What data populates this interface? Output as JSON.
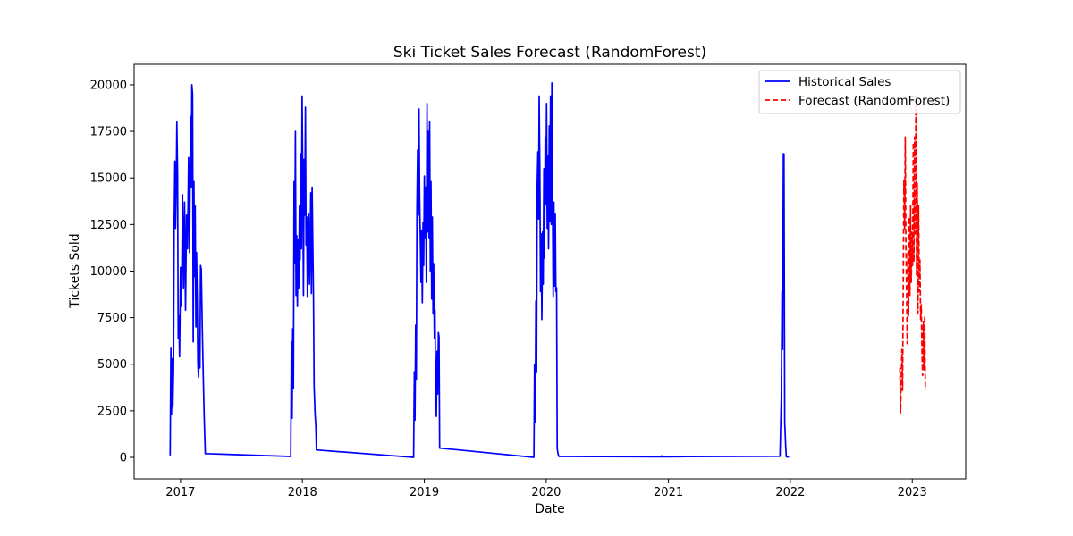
{
  "chart_data": {
    "type": "line",
    "title": "Ski Ticket Sales Forecast (RandomForest)",
    "xlabel": "Date",
    "ylabel": "Tickets Sold",
    "xlim": [
      "2016-08-15",
      "2023-06-10"
    ],
    "ylim": [
      -1150,
      21100
    ],
    "x_ticks": [
      "2017",
      "2018",
      "2019",
      "2020",
      "2021",
      "2022",
      "2023"
    ],
    "y_ticks": [
      0,
      2500,
      5000,
      7500,
      10000,
      12500,
      15000,
      17500,
      20000
    ],
    "y_tick_labels": [
      "0",
      "2500",
      "5000",
      "7500",
      "10000",
      "12500",
      "15000",
      "17500",
      "20000"
    ],
    "grid": false,
    "legend_position": "top-right",
    "series": [
      {
        "name": "Historical Sales",
        "color": "#0000ff",
        "style": "solid",
        "points": [
          [
            "2016-12-01",
            100
          ],
          [
            "2016-12-03",
            5900
          ],
          [
            "2016-12-05",
            2300
          ],
          [
            "2016-12-07",
            5300
          ],
          [
            "2016-12-09",
            2700
          ],
          [
            "2016-12-11",
            4800
          ],
          [
            "2016-12-13",
            12500
          ],
          [
            "2016-12-15",
            15900
          ],
          [
            "2016-12-17",
            12300
          ],
          [
            "2016-12-19",
            14500
          ],
          [
            "2016-12-21",
            18000
          ],
          [
            "2016-12-23",
            15300
          ],
          [
            "2016-12-25",
            6400
          ],
          [
            "2016-12-27",
            7600
          ],
          [
            "2016-12-29",
            5400
          ],
          [
            "2017-01-01",
            10200
          ],
          [
            "2017-01-04",
            8100
          ],
          [
            "2017-01-07",
            14100
          ],
          [
            "2017-01-10",
            9100
          ],
          [
            "2017-01-13",
            13700
          ],
          [
            "2017-01-16",
            7900
          ],
          [
            "2017-01-19",
            13000
          ],
          [
            "2017-01-22",
            11200
          ],
          [
            "2017-01-25",
            16100
          ],
          [
            "2017-01-28",
            11000
          ],
          [
            "2017-01-31",
            18300
          ],
          [
            "2017-02-02",
            14500
          ],
          [
            "2017-02-04",
            20000
          ],
          [
            "2017-02-06",
            19500
          ],
          [
            "2017-02-08",
            6200
          ],
          [
            "2017-02-10",
            14800
          ],
          [
            "2017-02-12",
            9700
          ],
          [
            "2017-02-14",
            13500
          ],
          [
            "2017-02-16",
            7000
          ],
          [
            "2017-02-18",
            11000
          ],
          [
            "2017-02-20",
            8500
          ],
          [
            "2017-02-22",
            5000
          ],
          [
            "2017-02-24",
            4300
          ],
          [
            "2017-02-26",
            6500
          ],
          [
            "2017-02-28",
            4800
          ],
          [
            "2017-03-02",
            10300
          ],
          [
            "2017-03-04",
            10100
          ],
          [
            "2017-03-07",
            7000
          ],
          [
            "2017-03-10",
            4400
          ],
          [
            "2017-03-13",
            2100
          ],
          [
            "2017-03-16",
            200
          ],
          [
            "2017-11-27",
            50
          ],
          [
            "2017-11-29",
            6200
          ],
          [
            "2017-12-01",
            2100
          ],
          [
            "2017-12-03",
            6900
          ],
          [
            "2017-12-05",
            3700
          ],
          [
            "2017-12-07",
            14800
          ],
          [
            "2017-12-09",
            10400
          ],
          [
            "2017-12-11",
            17500
          ],
          [
            "2017-12-13",
            8700
          ],
          [
            "2017-12-15",
            11900
          ],
          [
            "2017-12-17",
            8100
          ],
          [
            "2017-12-19",
            11700
          ],
          [
            "2017-12-21",
            9100
          ],
          [
            "2017-12-23",
            13500
          ],
          [
            "2017-12-25",
            10600
          ],
          [
            "2017-12-27",
            16300
          ],
          [
            "2017-12-29",
            11200
          ],
          [
            "2017-12-31",
            19400
          ],
          [
            "2018-01-02",
            15100
          ],
          [
            "2018-01-04",
            8700
          ],
          [
            "2018-01-06",
            16000
          ],
          [
            "2018-01-08",
            13000
          ],
          [
            "2018-01-10",
            18800
          ],
          [
            "2018-01-12",
            11400
          ],
          [
            "2018-01-14",
            12900
          ],
          [
            "2018-01-16",
            8600
          ],
          [
            "2018-01-18",
            10500
          ],
          [
            "2018-01-20",
            13100
          ],
          [
            "2018-01-22",
            9300
          ],
          [
            "2018-01-24",
            11400
          ],
          [
            "2018-01-26",
            14200
          ],
          [
            "2018-01-28",
            8800
          ],
          [
            "2018-01-30",
            14500
          ],
          [
            "2018-02-01",
            11700
          ],
          [
            "2018-02-03",
            8600
          ],
          [
            "2018-02-05",
            3800
          ],
          [
            "2018-02-08",
            2300
          ],
          [
            "2018-02-10",
            1700
          ],
          [
            "2018-02-12",
            400
          ],
          [
            "2018-11-30",
            0
          ],
          [
            "2018-12-02",
            4600
          ],
          [
            "2018-12-04",
            2000
          ],
          [
            "2018-12-06",
            7100
          ],
          [
            "2018-12-08",
            4200
          ],
          [
            "2018-12-10",
            13400
          ],
          [
            "2018-12-12",
            16500
          ],
          [
            "2018-12-14",
            13000
          ],
          [
            "2018-12-16",
            18700
          ],
          [
            "2018-12-18",
            14000
          ],
          [
            "2018-12-20",
            11700
          ],
          [
            "2018-12-22",
            9400
          ],
          [
            "2018-12-24",
            12200
          ],
          [
            "2018-12-26",
            8300
          ],
          [
            "2018-12-28",
            12600
          ],
          [
            "2018-12-30",
            10300
          ],
          [
            "2019-01-01",
            15100
          ],
          [
            "2019-01-03",
            11800
          ],
          [
            "2019-01-05",
            14500
          ],
          [
            "2019-01-07",
            9400
          ],
          [
            "2019-01-09",
            19000
          ],
          [
            "2019-01-11",
            12100
          ],
          [
            "2019-01-13",
            17500
          ],
          [
            "2019-01-15",
            11800
          ],
          [
            "2019-01-17",
            18000
          ],
          [
            "2019-01-19",
            10000
          ],
          [
            "2019-01-21",
            14800
          ],
          [
            "2019-01-23",
            8500
          ],
          [
            "2019-01-25",
            12900
          ],
          [
            "2019-01-27",
            7700
          ],
          [
            "2019-01-29",
            10400
          ],
          [
            "2019-01-31",
            6400
          ],
          [
            "2019-02-02",
            7900
          ],
          [
            "2019-02-04",
            3000
          ],
          [
            "2019-02-06",
            2200
          ],
          [
            "2019-02-08",
            5700
          ],
          [
            "2019-02-10",
            3400
          ],
          [
            "2019-02-12",
            6700
          ],
          [
            "2019-02-14",
            6500
          ],
          [
            "2019-02-16",
            500
          ],
          [
            "2019-11-25",
            0
          ],
          [
            "2019-11-27",
            5000
          ],
          [
            "2019-11-29",
            1900
          ],
          [
            "2019-12-01",
            8400
          ],
          [
            "2019-12-03",
            4600
          ],
          [
            "2019-12-05",
            14500
          ],
          [
            "2019-12-07",
            16400
          ],
          [
            "2019-12-09",
            12800
          ],
          [
            "2019-12-11",
            19400
          ],
          [
            "2019-12-13",
            15100
          ],
          [
            "2019-12-15",
            8900
          ],
          [
            "2019-12-17",
            12000
          ],
          [
            "2019-12-19",
            7400
          ],
          [
            "2019-12-21",
            12100
          ],
          [
            "2019-12-23",
            9300
          ],
          [
            "2019-12-25",
            15500
          ],
          [
            "2019-12-27",
            10700
          ],
          [
            "2019-12-29",
            17200
          ],
          [
            "2019-12-31",
            13600
          ],
          [
            "2020-01-02",
            19000
          ],
          [
            "2020-01-04",
            12300
          ],
          [
            "2020-01-06",
            16200
          ],
          [
            "2020-01-08",
            11200
          ],
          [
            "2020-01-10",
            17800
          ],
          [
            "2020-01-12",
            12700
          ],
          [
            "2020-01-14",
            19400
          ],
          [
            "2020-01-16",
            12500
          ],
          [
            "2020-01-18",
            20100
          ],
          [
            "2020-01-20",
            13400
          ],
          [
            "2020-01-22",
            8600
          ],
          [
            "2020-01-24",
            13700
          ],
          [
            "2020-01-26",
            9200
          ],
          [
            "2020-01-28",
            13100
          ],
          [
            "2020-01-30",
            8900
          ],
          [
            "2020-02-01",
            9100
          ],
          [
            "2020-02-03",
            500
          ],
          [
            "2020-02-05",
            200
          ],
          [
            "2020-02-08",
            50
          ],
          [
            "2020-12-10",
            30
          ],
          [
            "2020-12-12",
            80
          ],
          [
            "2020-12-14",
            20
          ],
          [
            "2020-12-16",
            70
          ],
          [
            "2020-12-18",
            30
          ],
          [
            "2021-02-20",
            40
          ],
          [
            "2021-12-01",
            60
          ],
          [
            "2021-12-05",
            3200
          ],
          [
            "2021-12-07",
            8900
          ],
          [
            "2021-12-09",
            5800
          ],
          [
            "2021-12-11",
            16300
          ],
          [
            "2021-12-13",
            16300
          ],
          [
            "2021-12-15",
            1900
          ],
          [
            "2021-12-18",
            600
          ],
          [
            "2021-12-20",
            30
          ],
          [
            "2021-12-28",
            20
          ]
        ]
      },
      {
        "name": "Forecast (RandomForest)",
        "color": "#ff0000",
        "style": "dashed",
        "points": [
          [
            "2022-11-25",
            4800
          ],
          [
            "2022-11-27",
            2400
          ],
          [
            "2022-11-29",
            4200
          ],
          [
            "2022-12-01",
            5800
          ],
          [
            "2022-12-03",
            3600
          ],
          [
            "2022-12-05",
            9500
          ],
          [
            "2022-12-07",
            14900
          ],
          [
            "2022-12-09",
            12200
          ],
          [
            "2022-12-11",
            17200
          ],
          [
            "2022-12-13",
            11500
          ],
          [
            "2022-12-15",
            9000
          ],
          [
            "2022-12-17",
            6100
          ],
          [
            "2022-12-19",
            11000
          ],
          [
            "2022-12-21",
            7600
          ],
          [
            "2022-12-23",
            12900
          ],
          [
            "2022-12-25",
            8700
          ],
          [
            "2022-12-27",
            13500
          ],
          [
            "2022-12-29",
            9400
          ],
          [
            "2022-12-31",
            12100
          ],
          [
            "2023-01-02",
            10300
          ],
          [
            "2023-01-04",
            16900
          ],
          [
            "2023-01-06",
            10500
          ],
          [
            "2023-01-08",
            17200
          ],
          [
            "2023-01-10",
            12000
          ],
          [
            "2023-01-12",
            19400
          ],
          [
            "2023-01-14",
            9800
          ],
          [
            "2023-01-16",
            14700
          ],
          [
            "2023-01-18",
            7700
          ],
          [
            "2023-01-20",
            13500
          ],
          [
            "2023-01-22",
            8900
          ],
          [
            "2023-01-24",
            10600
          ],
          [
            "2023-01-26",
            7400
          ],
          [
            "2023-01-28",
            8200
          ],
          [
            "2023-01-30",
            5600
          ],
          [
            "2023-02-01",
            4400
          ],
          [
            "2023-02-03",
            7300
          ],
          [
            "2023-02-05",
            4700
          ],
          [
            "2023-02-07",
            7600
          ],
          [
            "2023-02-09",
            3600
          ]
        ]
      }
    ]
  }
}
